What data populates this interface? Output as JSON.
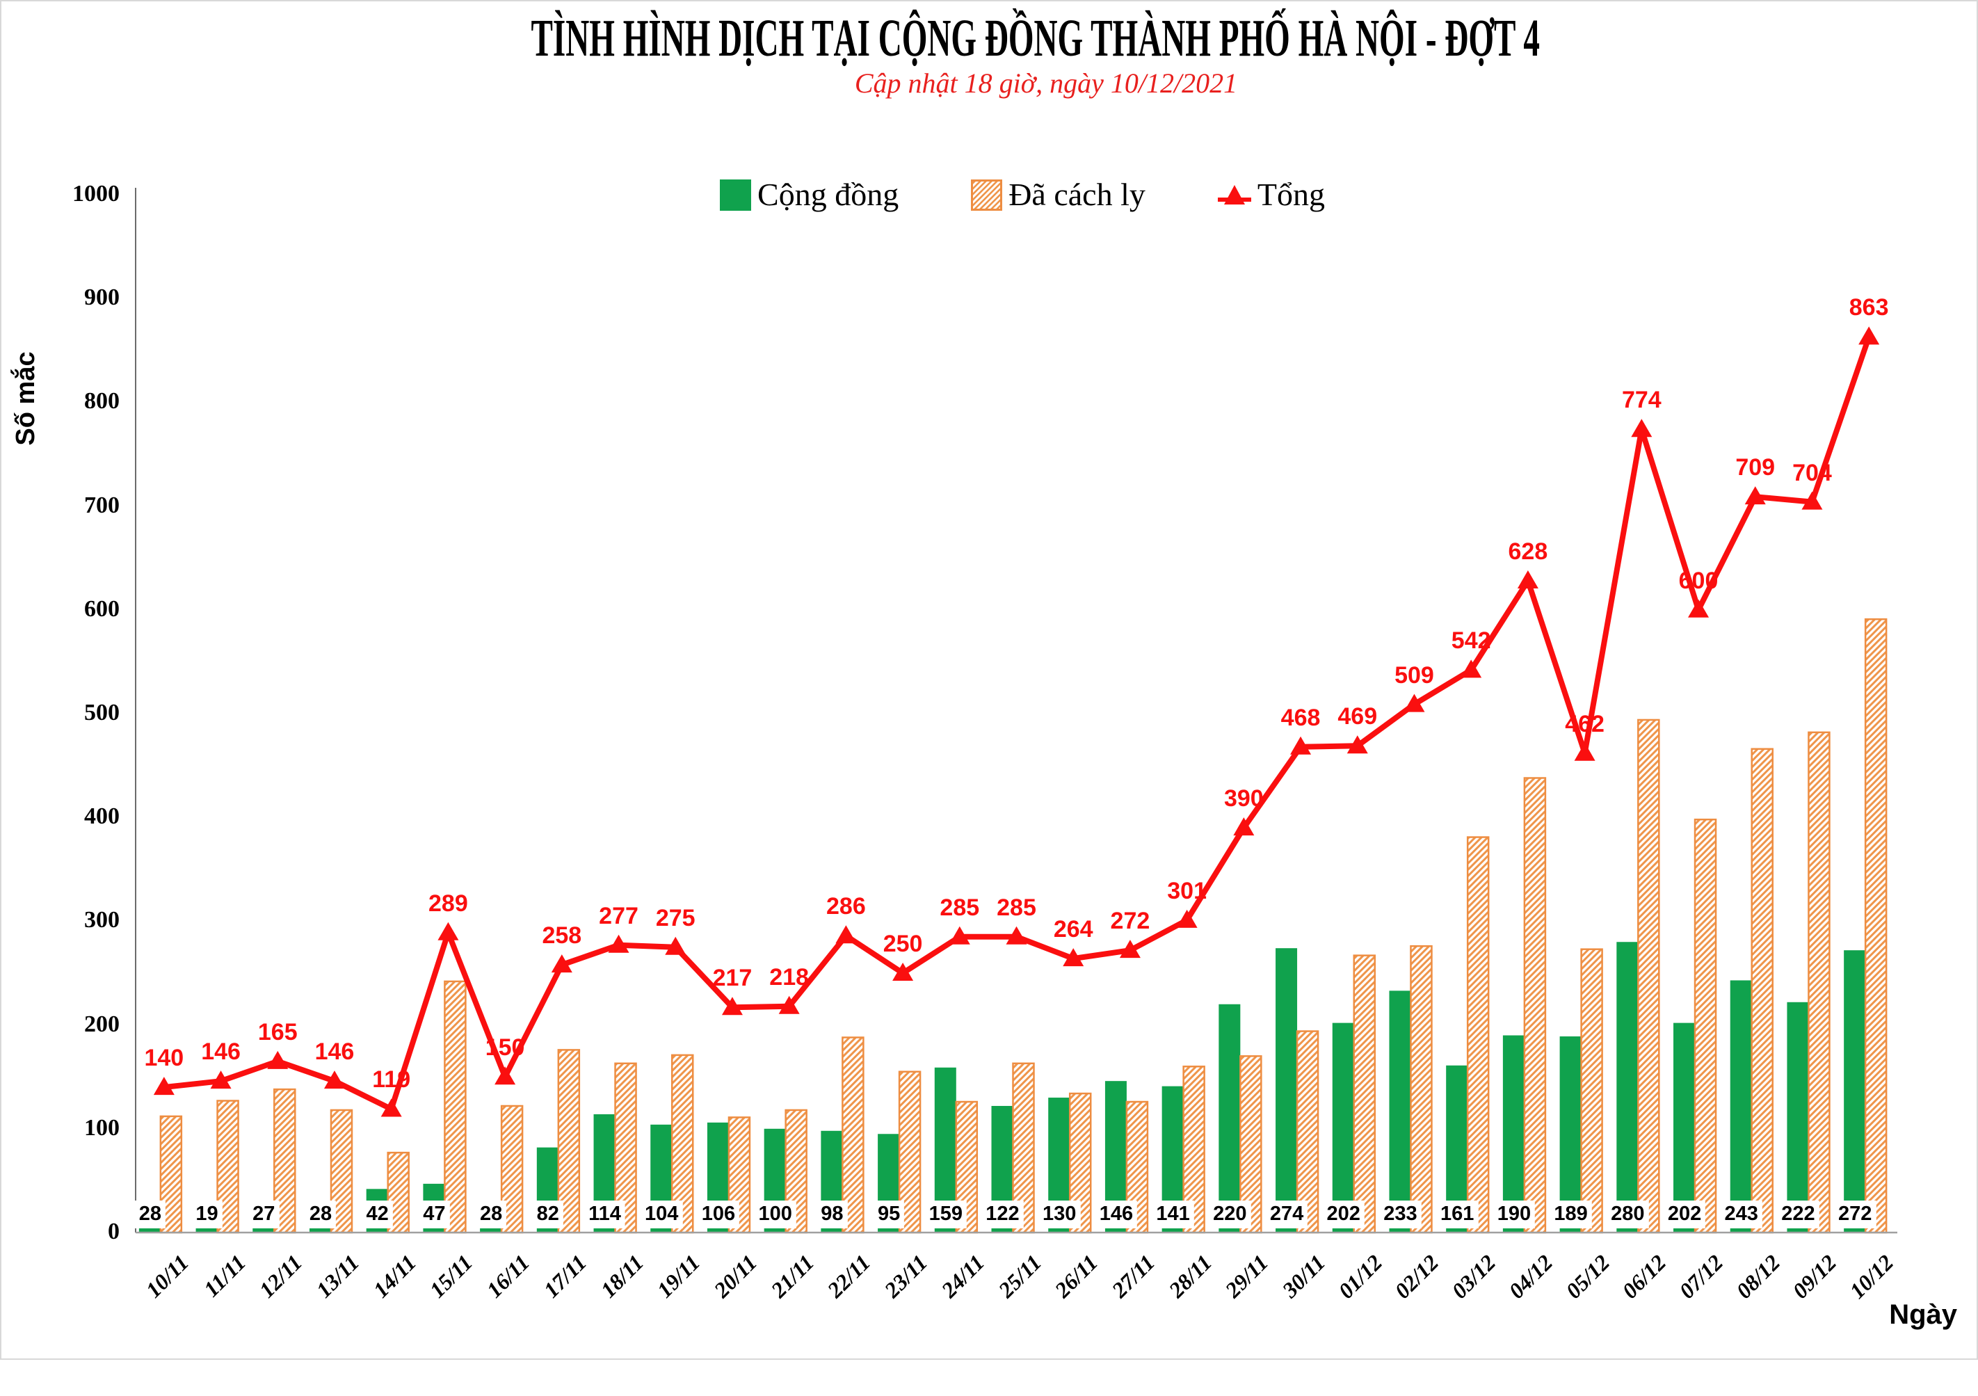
{
  "colors": {
    "community_green": "#10A24D",
    "quarantine_hatch_orange": "#EF954A",
    "quarantine_border_orange": "#EE8D41",
    "total_red": "#FA0F0F",
    "subtitle_red": "#E8201E",
    "x_axis_gray": "#A0A0A0",
    "y_axis_gray": "#6B6B6B",
    "chart_border_gray": "#D8D8D8",
    "label_box_bg": "#FFFFFF",
    "text_black": "#000000"
  },
  "chart_data": {
    "type": "bar+line",
    "title": "TÌNH HÌNH DỊCH TẠI CỘNG ĐỒNG THÀNH PHỐ HÀ NỘI - ĐỢT 4",
    "subtitle": "Cập nhật 18 giờ, ngày 10/12/2021",
    "ylabel": "Số mắc",
    "xlabel": "Ngày",
    "ylim": [
      0,
      1000
    ],
    "y_tick_step": 100,
    "grid": false,
    "legend_position": "top",
    "legend": [
      {
        "label": "Cộng đồng",
        "swatch": "solid-green"
      },
      {
        "label": "Đã cách ly",
        "swatch": "hatched-orange"
      },
      {
        "label": "Tổng",
        "swatch": "red-line-triangle"
      }
    ],
    "categories": [
      "10/11",
      "11/11",
      "12/11",
      "13/11",
      "14/11",
      "15/11",
      "16/11",
      "17/11",
      "18/11",
      "19/11",
      "20/11",
      "21/11",
      "22/11",
      "23/11",
      "24/11",
      "25/11",
      "26/11",
      "27/11",
      "28/11",
      "29/11",
      "30/11",
      "01/12",
      "02/12",
      "03/12",
      "04/12",
      "05/12",
      "06/12",
      "07/12",
      "08/12",
      "09/12",
      "10/12"
    ],
    "series": [
      {
        "name": "Cộng đồng",
        "type": "bar",
        "style": "solid-green",
        "labels_shown": true,
        "values": [
          28,
          19,
          27,
          28,
          42,
          47,
          28,
          82,
          114,
          104,
          106,
          100,
          98,
          95,
          159,
          122,
          130,
          146,
          141,
          220,
          274,
          202,
          233,
          161,
          190,
          189,
          280,
          202,
          243,
          222,
          272
        ]
      },
      {
        "name": "Đã cách ly",
        "type": "bar",
        "style": "hatched-orange",
        "labels_shown": false,
        "values": [
          112,
          127,
          138,
          118,
          77,
          242,
          122,
          176,
          163,
          171,
          111,
          118,
          188,
          155,
          126,
          163,
          134,
          126,
          160,
          170,
          194,
          267,
          276,
          381,
          438,
          273,
          494,
          398,
          466,
          482,
          591
        ]
      },
      {
        "name": "Tổng",
        "type": "line",
        "style": "red-triangle-markers",
        "labels_shown": true,
        "values": [
          140,
          146,
          165,
          146,
          119,
          289,
          150,
          258,
          277,
          275,
          217,
          218,
          286,
          250,
          285,
          285,
          264,
          272,
          301,
          390,
          468,
          469,
          509,
          542,
          628,
          462,
          774,
          600,
          709,
          704,
          863
        ]
      }
    ]
  }
}
